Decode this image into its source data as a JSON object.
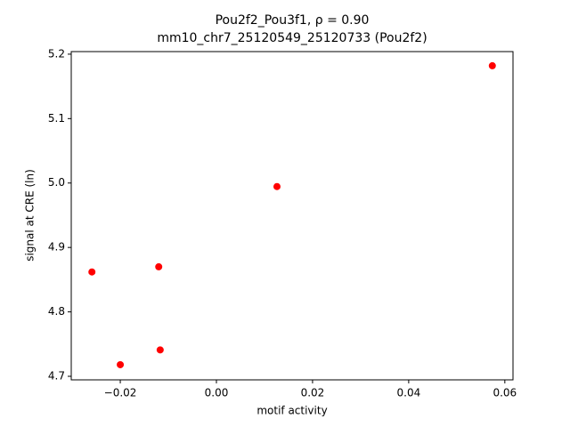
{
  "chart_data": {
    "type": "scatter",
    "title": "Pou2f2_Pou3f1, ρ = 0.90",
    "subtitle": "mm10_chr7_25120549_25120733 (Pou2f2)",
    "x_label": "motif activity",
    "y_label": "signal at CRE (ln)",
    "series": [
      {
        "color": "#ff0000",
        "x": [
          0.0574,
          0.0126,
          -0.012,
          -0.0259,
          -0.0117,
          -0.02
        ],
        "values": [
          5.182,
          4.9945,
          4.87,
          4.862,
          4.741,
          4.718
        ]
      }
    ],
    "xlim": [
      -0.0302,
      0.0617
    ],
    "ylim": [
      4.6945,
      5.204
    ],
    "xticks": [
      {
        "value": -0.02,
        "label": "−0.02"
      },
      {
        "value": 0,
        "label": "0.00"
      },
      0.02,
      0.04,
      0.06
    ],
    "yticks": [
      {
        "value": 4.7,
        "label": "4.7"
      },
      4.8,
      4.9,
      {
        "value": 5.0,
        "label": "5.0"
      },
      5.1,
      5.2
    ],
    "grid": false
  }
}
